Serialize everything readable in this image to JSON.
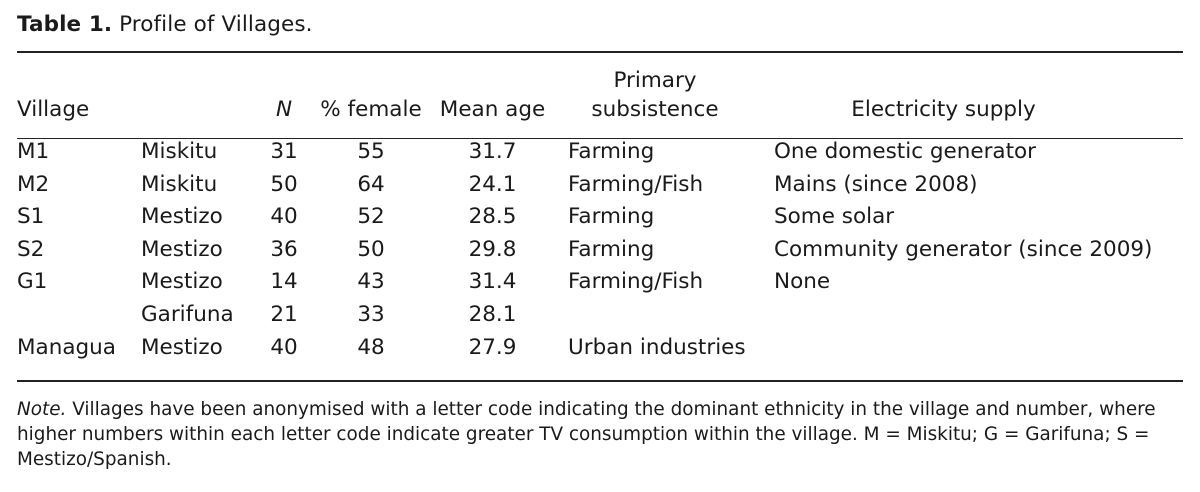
{
  "caption": {
    "label": "Table 1.",
    "title": "Profile of Villages."
  },
  "table": {
    "headers": {
      "village": "Village",
      "ethnicity": "",
      "n": "N",
      "pct_female": "% female",
      "mean_age": "Mean age",
      "primary_subsistence_line1": "Primary",
      "primary_subsistence_line2": "subsistence",
      "electricity_supply": "Electricity supply"
    },
    "rows": [
      {
        "village": "M1",
        "ethnicity": "Miskitu",
        "n": "31",
        "pct_female": "55",
        "mean_age": "31.7",
        "subsistence": "Farming",
        "electricity": "One domestic generator"
      },
      {
        "village": "M2",
        "ethnicity": "Miskitu",
        "n": "50",
        "pct_female": "64",
        "mean_age": "24.1",
        "subsistence": "Farming/Fish",
        "electricity": "Mains (since 2008)"
      },
      {
        "village": "S1",
        "ethnicity": "Mestizo",
        "n": "40",
        "pct_female": "52",
        "mean_age": "28.5",
        "subsistence": "Farming",
        "electricity": "Some solar"
      },
      {
        "village": "S2",
        "ethnicity": "Mestizo",
        "n": "36",
        "pct_female": "50",
        "mean_age": "29.8",
        "subsistence": "Farming",
        "electricity": "Community generator (since 2009)"
      },
      {
        "village": "G1",
        "ethnicity": "Mestizo",
        "n": "14",
        "pct_female": "43",
        "mean_age": "31.4",
        "subsistence": "Farming/Fish",
        "electricity": "None"
      },
      {
        "village": "",
        "ethnicity": "Garifuna",
        "n": "21",
        "pct_female": "33",
        "mean_age": "28.1",
        "subsistence": "",
        "electricity": ""
      },
      {
        "village": "Managua",
        "ethnicity": "Mestizo",
        "n": "40",
        "pct_female": "48",
        "mean_age": "27.9",
        "subsistence": "Urban industries",
        "electricity": ""
      }
    ]
  },
  "note": {
    "label": "Note.",
    "text": "Villages have been anonymised with a letter code indicating the dominant ethnicity in the village and number, where higher numbers within each letter code indicate greater TV consumption within the village. M = Miskitu; G = Garifuna; S = Mestizo/Spanish."
  }
}
